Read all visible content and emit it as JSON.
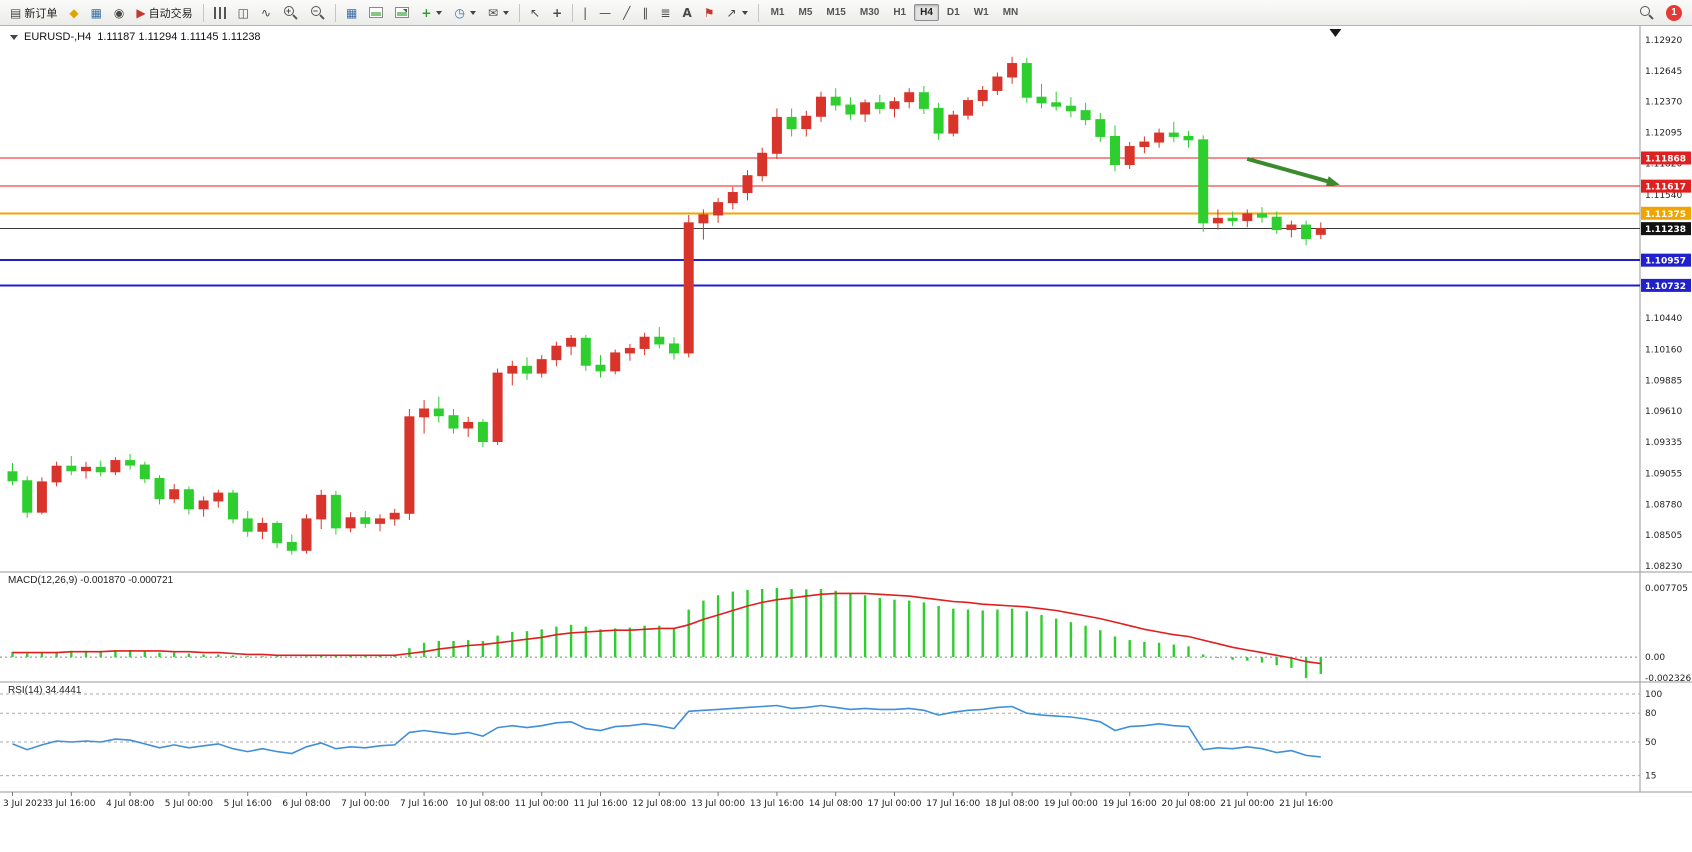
{
  "toolbar": {
    "new_order": "新订单",
    "autotrading": "自动交易",
    "timeframes": [
      "M1",
      "M5",
      "M15",
      "M30",
      "H1",
      "H4",
      "D1",
      "W1",
      "MN"
    ],
    "active_timeframe": "H4",
    "notification_count": "1"
  },
  "icons": {
    "new_order": "▤",
    "horn": "◆",
    "charts_grid": "▦",
    "market_watch": "◉",
    "autotrading": "▶",
    "candles": "◫",
    "line_chart": "∿",
    "tile": "▦",
    "plus": "+",
    "minus": "−",
    "clock": "◷",
    "envelope": "✉",
    "cursor": "↖",
    "crosshair": "+",
    "vline": "|",
    "hline": "—",
    "trendline": "╱",
    "channel": "∥",
    "fibonacci": "≣",
    "text": "A",
    "flag": "⚑",
    "arrow_tool": "↗"
  },
  "chart": {
    "header": {
      "symbol_period": "EURUSD-,H4",
      "ohlc": "1.11187 1.11294 1.11145 1.11238"
    },
    "macd_label": "MACD(12,26,9) -0.001870 -0.000721",
    "rsi_label": "RSI(14) 34.4441"
  },
  "chart_data": {
    "type": "candlestick",
    "symbol": "EURUSD-",
    "period": "H4",
    "current_ohlc": {
      "open": "1.11187",
      "high": "1.11294",
      "low": "1.11145",
      "close": "1.11238"
    },
    "up_color": "#d9342b",
    "down_color": "#2fce2f",
    "price_axis": {
      "min": 1.0823,
      "max": 1.1292,
      "labels": [
        "1.12920",
        "1.12645",
        "1.12370",
        "1.12095",
        "1.11820",
        "1.11540",
        "1.10440",
        "1.10160",
        "1.09885",
        "1.09610",
        "1.09335",
        "1.09055",
        "1.08780",
        "1.08505",
        "1.08230"
      ]
    },
    "time_axis": [
      "3 Jul 2023",
      "3 Jul 16:00",
      "4 Jul 08:00",
      "5 Jul 00:00",
      "5 Jul 16:00",
      "6 Jul 08:00",
      "7 Jul 00:00",
      "7 Jul 16:00",
      "10 Jul 08:00",
      "11 Jul 00:00",
      "11 Jul 16:00",
      "12 Jul 08:00",
      "13 Jul 00:00",
      "13 Jul 16:00",
      "14 Jul 08:00",
      "17 Jul 00:00",
      "17 Jul 16:00",
      "18 Jul 08:00",
      "19 Jul 00:00",
      "19 Jul 16:00",
      "20 Jul 08:00",
      "21 Jul 00:00",
      "21 Jul 16:00"
    ],
    "candles": [
      [
        1.0907,
        1.0915,
        1.0895,
        1.0899
      ],
      [
        1.0899,
        1.0903,
        1.0866,
        1.0871
      ],
      [
        1.0871,
        1.0902,
        1.0869,
        1.0898
      ],
      [
        1.0898,
        1.0916,
        1.0894,
        1.0912
      ],
      [
        1.0912,
        1.0921,
        1.0904,
        1.0908
      ],
      [
        1.0908,
        1.0916,
        1.0901,
        1.0911
      ],
      [
        1.0911,
        1.0917,
        1.0903,
        1.0907
      ],
      [
        1.0907,
        1.092,
        1.0904,
        1.0917
      ],
      [
        1.0917,
        1.0923,
        1.0909,
        1.0913
      ],
      [
        1.0913,
        1.0916,
        1.0897,
        1.0901
      ],
      [
        1.0901,
        1.0904,
        1.0878,
        1.0883
      ],
      [
        1.0883,
        1.0896,
        1.0879,
        1.0891
      ],
      [
        1.0891,
        1.0894,
        1.0869,
        1.0874
      ],
      [
        1.0874,
        1.0885,
        1.0867,
        1.0881
      ],
      [
        1.0881,
        1.0891,
        1.0875,
        1.0888
      ],
      [
        1.0888,
        1.0891,
        1.0861,
        1.0865
      ],
      [
        1.0865,
        1.0872,
        1.0849,
        1.0854
      ],
      [
        1.0854,
        1.0866,
        1.0847,
        1.0861
      ],
      [
        1.0861,
        1.0863,
        1.0839,
        1.0844
      ],
      [
        1.0844,
        1.0851,
        1.0833,
        1.0837
      ],
      [
        1.0837,
        1.0869,
        1.0834,
        1.0865
      ],
      [
        1.0865,
        1.0891,
        1.0856,
        1.0886
      ],
      [
        1.0886,
        1.089,
        1.0851,
        1.0857
      ],
      [
        1.0857,
        1.0871,
        1.0853,
        1.0866
      ],
      [
        1.0866,
        1.0872,
        1.0857,
        1.0861
      ],
      [
        1.0861,
        1.0869,
        1.0854,
        1.0865
      ],
      [
        1.0865,
        1.0874,
        1.0859,
        1.087
      ],
      [
        1.087,
        1.0963,
        1.0864,
        1.0956
      ],
      [
        1.0956,
        1.0971,
        1.0941,
        1.0963
      ],
      [
        1.0963,
        1.0974,
        1.0951,
        1.0957
      ],
      [
        1.0957,
        1.0963,
        1.0941,
        1.0946
      ],
      [
        1.0946,
        1.0956,
        1.0938,
        1.0951
      ],
      [
        1.0951,
        1.0954,
        1.0929,
        1.0934
      ],
      [
        1.0934,
        1.0999,
        1.0931,
        1.0995
      ],
      [
        1.0995,
        1.1006,
        1.0984,
        1.1001
      ],
      [
        1.1001,
        1.1009,
        1.0989,
        1.0995
      ],
      [
        1.0995,
        1.1011,
        1.0991,
        1.1007
      ],
      [
        1.1007,
        1.1023,
        1.1001,
        1.1019
      ],
      [
        1.1019,
        1.1029,
        1.1011,
        1.1026
      ],
      [
        1.1026,
        1.1029,
        1.0997,
        1.1002
      ],
      [
        1.1002,
        1.1011,
        1.0991,
        1.0997
      ],
      [
        1.0997,
        1.1016,
        1.0994,
        1.1013
      ],
      [
        1.1013,
        1.1021,
        1.1006,
        1.1017
      ],
      [
        1.1017,
        1.1031,
        1.1011,
        1.1027
      ],
      [
        1.1027,
        1.1036,
        1.1017,
        1.1021
      ],
      [
        1.1021,
        1.1027,
        1.1007,
        1.1013
      ],
      [
        1.1013,
        1.1136,
        1.1009,
        1.1129
      ],
      [
        1.1129,
        1.1141,
        1.1114,
        1.1136
      ],
      [
        1.1136,
        1.1151,
        1.1129,
        1.1147
      ],
      [
        1.1147,
        1.1161,
        1.1141,
        1.1156
      ],
      [
        1.1156,
        1.1176,
        1.1149,
        1.1171
      ],
      [
        1.1171,
        1.1196,
        1.1166,
        1.1191
      ],
      [
        1.1191,
        1.1231,
        1.1186,
        1.1223
      ],
      [
        1.1223,
        1.1231,
        1.1206,
        1.1213
      ],
      [
        1.1213,
        1.1229,
        1.1206,
        1.1224
      ],
      [
        1.1224,
        1.1246,
        1.1219,
        1.1241
      ],
      [
        1.1241,
        1.1249,
        1.1229,
        1.1234
      ],
      [
        1.1234,
        1.1241,
        1.1221,
        1.1226
      ],
      [
        1.1226,
        1.1239,
        1.1219,
        1.1236
      ],
      [
        1.1236,
        1.1243,
        1.1226,
        1.1231
      ],
      [
        1.1231,
        1.1241,
        1.1223,
        1.1237
      ],
      [
        1.1237,
        1.1249,
        1.1231,
        1.1245
      ],
      [
        1.1245,
        1.1251,
        1.1226,
        1.1231
      ],
      [
        1.1231,
        1.1236,
        1.1203,
        1.1209
      ],
      [
        1.1209,
        1.1229,
        1.1206,
        1.1225
      ],
      [
        1.1225,
        1.1241,
        1.1221,
        1.1238
      ],
      [
        1.1238,
        1.1251,
        1.1233,
        1.1247
      ],
      [
        1.1247,
        1.1263,
        1.1243,
        1.1259
      ],
      [
        1.1259,
        1.1277,
        1.1253,
        1.1271
      ],
      [
        1.1271,
        1.1276,
        1.1236,
        1.1241
      ],
      [
        1.1241,
        1.1253,
        1.1231,
        1.1236
      ],
      [
        1.1236,
        1.1246,
        1.1229,
        1.1233
      ],
      [
        1.1233,
        1.1241,
        1.1223,
        1.1229
      ],
      [
        1.1229,
        1.1236,
        1.1216,
        1.1221
      ],
      [
        1.1221,
        1.1227,
        1.1201,
        1.1206
      ],
      [
        1.1206,
        1.1216,
        1.1175,
        1.1181
      ],
      [
        1.1181,
        1.1201,
        1.1177,
        1.1197
      ],
      [
        1.1197,
        1.1206,
        1.1191,
        1.1201
      ],
      [
        1.1201,
        1.1213,
        1.1196,
        1.1209
      ],
      [
        1.1209,
        1.1219,
        1.1201,
        1.1206
      ],
      [
        1.1206,
        1.1211,
        1.1196,
        1.1203
      ],
      [
        1.1203,
        1.1207,
        1.1121,
        1.1129
      ],
      [
        1.1129,
        1.1141,
        1.1123,
        1.1133
      ],
      [
        1.1133,
        1.1139,
        1.1126,
        1.1131
      ],
      [
        1.1131,
        1.1141,
        1.1125,
        1.1137
      ],
      [
        1.1137,
        1.1143,
        1.1129,
        1.1134
      ],
      [
        1.1134,
        1.1139,
        1.1119,
        1.1123
      ],
      [
        1.1123,
        1.1131,
        1.1116,
        1.1127
      ],
      [
        1.1127,
        1.1131,
        1.1109,
        1.1115
      ],
      [
        1.11187,
        1.11294,
        1.11145,
        1.11238
      ]
    ],
    "hlines": [
      {
        "name": "resistance-line-1",
        "price": 1.11868,
        "color": "#f01818",
        "width": 1.2
      },
      {
        "name": "resistance-line-2",
        "price": 1.11617,
        "color": "#f01818",
        "width": 1.2
      },
      {
        "name": "pivot-line",
        "price": 1.11375,
        "color": "#f0a400",
        "width": 2
      },
      {
        "name": "bid-price-line",
        "price": 1.11238,
        "color": "#3a3a3a",
        "width": 1
      },
      {
        "name": "support-line-1",
        "price": 1.10957,
        "color": "#1f1fd0",
        "width": 2
      },
      {
        "name": "support-line-2",
        "price": 1.10732,
        "color": "#1f1fd0",
        "width": 2
      }
    ],
    "price_badges": [
      {
        "text": "1.11868",
        "color": "#e02020"
      },
      {
        "text": "1.11617",
        "color": "#e02020"
      },
      {
        "text": "1.11375",
        "color": "#f0a400"
      },
      {
        "text": "1.11238",
        "color": "#111111"
      },
      {
        "text": "1.10957",
        "color": "#2020cc"
      },
      {
        "text": "1.10732",
        "color": "#2020cc"
      }
    ],
    "arrow": {
      "x1_index": 84.3,
      "price1": 1.1186,
      "x2_index": 90.6,
      "price2": 1.1163,
      "color": "#3c8a2e"
    },
    "shift_marker_index": 90.3,
    "macd": {
      "scale_max": 0.007705,
      "scale_min": -0.002326,
      "scale_labels": [
        "0.007705",
        "0.00",
        "-0.002326"
      ],
      "histogram_color": "#2fce2f",
      "signal_color": "#e02020",
      "values": [
        0.0006,
        0.0004,
        0.0005,
        0.0006,
        0.0007,
        0.0007,
        0.0007,
        0.0008,
        0.0008,
        0.0007,
        0.0005,
        0.0005,
        0.0004,
        0.0003,
        0.0003,
        0.0002,
        0.0001,
        0.0001,
        0.0001,
        0.0,
        0.0001,
        0.0003,
        0.0002,
        0.0002,
        0.0002,
        0.0002,
        0.0003,
        0.001,
        0.0016,
        0.0018,
        0.0018,
        0.0019,
        0.0018,
        0.0024,
        0.0028,
        0.0029,
        0.0031,
        0.0034,
        0.0036,
        0.0034,
        0.0031,
        0.0032,
        0.0033,
        0.0035,
        0.0035,
        0.0033,
        0.0053,
        0.0063,
        0.0069,
        0.0073,
        0.0075,
        0.0076,
        0.007705,
        0.0076,
        0.00755,
        0.0076,
        0.0074,
        0.0071,
        0.0069,
        0.0066,
        0.0064,
        0.0063,
        0.0061,
        0.0057,
        0.0054,
        0.0053,
        0.0052,
        0.0053,
        0.0054,
        0.0051,
        0.0047,
        0.0043,
        0.0039,
        0.0035,
        0.003,
        0.0023,
        0.0019,
        0.0017,
        0.0016,
        0.0014,
        0.0012,
        0.0003,
        -0.0001,
        -0.0003,
        -0.0004,
        -0.0006,
        -0.0009,
        -0.0012,
        -0.002326,
        -0.00187
      ],
      "signal": [
        0.0005,
        0.0005,
        0.0005,
        0.0005,
        0.0006,
        0.0006,
        0.0006,
        0.0007,
        0.0007,
        0.0007,
        0.0007,
        0.0006,
        0.0006,
        0.0005,
        0.0005,
        0.0004,
        0.0003,
        0.0003,
        0.0002,
        0.0002,
        0.0002,
        0.0002,
        0.0002,
        0.0002,
        0.0002,
        0.0002,
        0.0002,
        0.0004,
        0.0006,
        0.0009,
        0.0011,
        0.0013,
        0.0014,
        0.0016,
        0.0018,
        0.002,
        0.0022,
        0.0025,
        0.0027,
        0.0028,
        0.0029,
        0.003,
        0.003,
        0.0031,
        0.0032,
        0.0032,
        0.0036,
        0.0042,
        0.0047,
        0.0052,
        0.0057,
        0.0061,
        0.0064,
        0.0066,
        0.0068,
        0.007,
        0.0071,
        0.0071,
        0.0071,
        0.007,
        0.0069,
        0.0068,
        0.0066,
        0.0064,
        0.0062,
        0.0061,
        0.0059,
        0.0058,
        0.0057,
        0.0056,
        0.0054,
        0.0052,
        0.0049,
        0.0046,
        0.0043,
        0.0039,
        0.0035,
        0.0031,
        0.0028,
        0.0025,
        0.0023,
        0.0019,
        0.0015,
        0.0011,
        0.0008,
        0.0005,
        0.0002,
        -0.0001,
        -0.0005,
        -0.000721
      ]
    },
    "rsi": {
      "levels": [
        100,
        80,
        50,
        15
      ],
      "line_color": "#3f8fd9",
      "current_value": 34.4441,
      "values": [
        48,
        42,
        47,
        51,
        50,
        51,
        50,
        53,
        52,
        48,
        44,
        47,
        44,
        46,
        48,
        43,
        40,
        43,
        40,
        38,
        45,
        49,
        43,
        45,
        44,
        46,
        47,
        60,
        62,
        60,
        58,
        60,
        56,
        65,
        67,
        65,
        67,
        70,
        71,
        64,
        62,
        66,
        67,
        69,
        67,
        64,
        82,
        83,
        84,
        85,
        86,
        87,
        88,
        85,
        86,
        88,
        86,
        84,
        85,
        84,
        84,
        85,
        83,
        78,
        81,
        83,
        84,
        86,
        87,
        80,
        78,
        77,
        76,
        74,
        71,
        62,
        66,
        67,
        69,
        67,
        66,
        42,
        44,
        43,
        45,
        43,
        39,
        41,
        36,
        34.4441
      ]
    }
  }
}
